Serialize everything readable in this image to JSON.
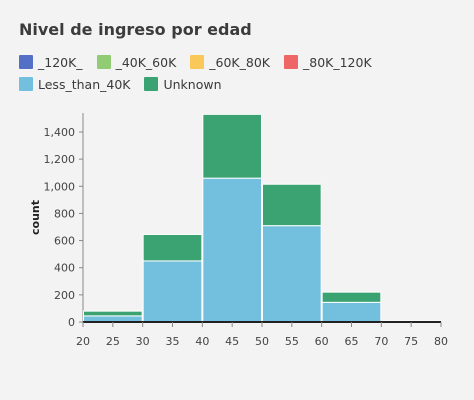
{
  "chart_data": {
    "type": "bar",
    "title": "Nivel de ingreso por edad",
    "xlabel": "",
    "ylabel": "count",
    "x_bins": [
      [
        20,
        30
      ],
      [
        30,
        40
      ],
      [
        40,
        50
      ],
      [
        50,
        60
      ],
      [
        60,
        70
      ],
      [
        70,
        80
      ]
    ],
    "x_ticks": [
      "20",
      "25",
      "30",
      "35",
      "40",
      "45",
      "50",
      "55",
      "60",
      "65",
      "70",
      "75",
      "80"
    ],
    "y_ticks": [
      "0",
      "200",
      "400",
      "600",
      "800",
      "1,000",
      "1,200",
      "1,400"
    ],
    "xlim": [
      20,
      80
    ],
    "ylim": [
      0,
      1540
    ],
    "stacked": true,
    "legend_position": "top-left",
    "grid": false,
    "series": [
      {
        "name": "_120K_",
        "color": "#5470c6",
        "values": [
          0,
          0,
          0,
          0,
          0,
          0
        ]
      },
      {
        "name": "_40K_60K",
        "color": "#91cc75",
        "values": [
          0,
          0,
          0,
          0,
          0,
          0
        ]
      },
      {
        "name": "_60K_80K",
        "color": "#fac858",
        "values": [
          0,
          0,
          0,
          0,
          0,
          0
        ]
      },
      {
        "name": "_80K_120K",
        "color": "#ee6666",
        "values": [
          0,
          0,
          0,
          0,
          0,
          0
        ]
      },
      {
        "name": "Less_than_40K",
        "color": "#73c0de",
        "values": [
          45,
          450,
          1060,
          710,
          145,
          0
        ]
      },
      {
        "name": "Unknown",
        "color": "#3ba272",
        "values": [
          35,
          195,
          470,
          305,
          75,
          8
        ]
      }
    ]
  }
}
